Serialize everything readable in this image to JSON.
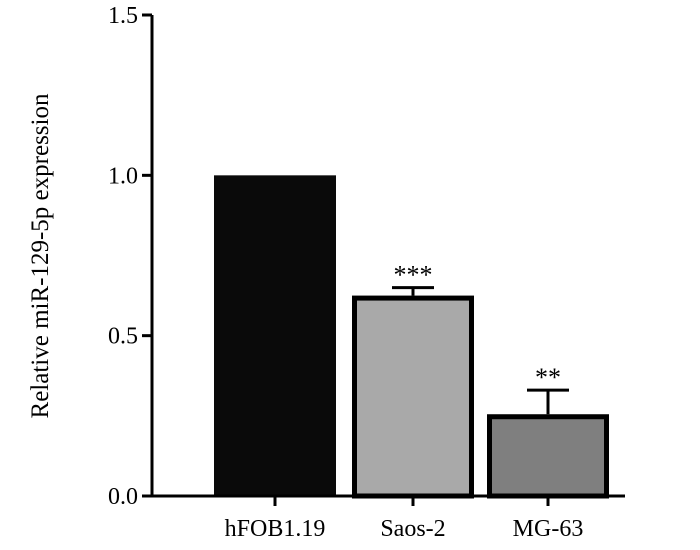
{
  "chart_data": {
    "type": "bar",
    "title": "",
    "xlabel": "",
    "ylabel": "Relative miR-129-5p expression",
    "ylim": [
      0,
      1.5
    ],
    "yticks": [
      "0.0",
      "0.5",
      "1.0",
      "1.5"
    ],
    "categories": [
      "hFOB1.19",
      "Saos-2",
      "MG-63"
    ],
    "values": [
      1.0,
      0.625,
      0.255
    ],
    "errors": [
      0,
      0.025,
      0.075
    ],
    "significance": [
      "",
      "***",
      "**"
    ],
    "colors": {
      "bars": [
        "#0a0a0a",
        "#a9a9a9",
        "#7f7f7f"
      ],
      "bar_outline": "#000000",
      "axis": "#000000"
    },
    "grid": false,
    "legend": "none"
  }
}
